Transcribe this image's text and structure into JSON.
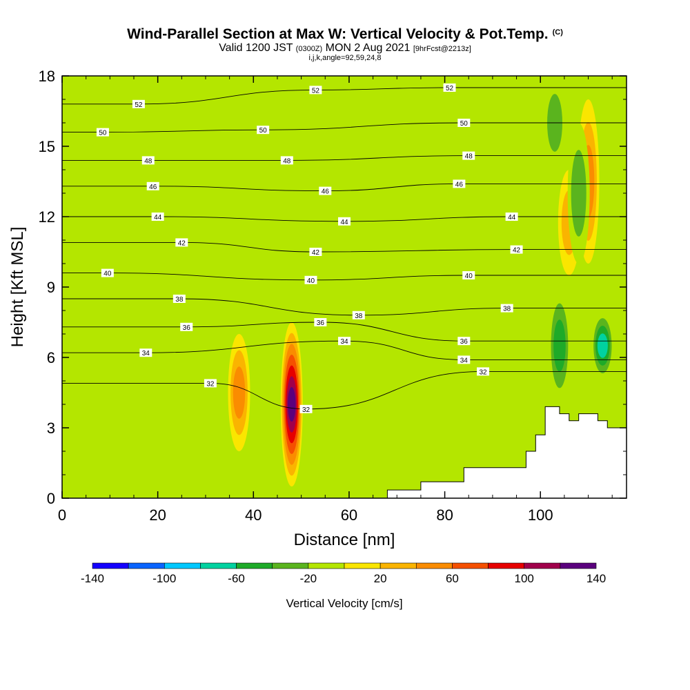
{
  "title": {
    "main": "Wind-Parallel Section at Max W: Vertical Velocity & Pot.Temp.",
    "copyright": "(C)",
    "valid_prefix": "Valid 1200 JST",
    "valid_utc": "(0300Z)",
    "valid_date": "MON 2 Aug 2021",
    "forecast": "[9hrFcst@2213z]",
    "params": "i,j,k,angle=92,59,24,8"
  },
  "chart_data": {
    "type": "heatmap",
    "xlabel": "Distance [nm]",
    "ylabel": "Height [Kft MSL]",
    "xlim": [
      0,
      118
    ],
    "ylim": [
      0,
      18
    ],
    "x_ticks": [
      0,
      20,
      40,
      60,
      80,
      100
    ],
    "y_ticks": [
      0,
      3,
      6,
      9,
      12,
      15,
      18
    ],
    "colorbar": {
      "title": "Vertical Velocity [cm/s]",
      "tick_labels": [
        "-140",
        "-100",
        "-60",
        "-20",
        "20",
        "60",
        "100",
        "140"
      ],
      "levels": [
        -140,
        -120,
        -100,
        -80,
        -60,
        -40,
        -20,
        0,
        20,
        40,
        60,
        80,
        100,
        120,
        140
      ],
      "colors": [
        "#1400ff",
        "#0a64ff",
        "#00c8ff",
        "#00d2a0",
        "#1eaa28",
        "#5ab41e",
        "#b4e600",
        "#fae600",
        "#fab400",
        "#fa8c00",
        "#f55000",
        "#e60000",
        "#a0004b",
        "#5a007d"
      ]
    },
    "background_color": "#b4e600",
    "updraft_cores": [
      {
        "x": 48,
        "y_bottom": 0.5,
        "y_top": 7.5,
        "max_w": 140
      },
      {
        "x": 37,
        "y_bottom": 2.0,
        "y_top": 7.0,
        "max_w": 70
      },
      {
        "x": 110,
        "y_bottom": 10.0,
        "y_top": 17.0,
        "max_w": 60
      },
      {
        "x": 106,
        "y_bottom": 9.5,
        "y_top": 14.0,
        "max_w": 50
      }
    ],
    "downdraft_cores": [
      {
        "x": 104,
        "y_bottom": 4.0,
        "y_top": 9.0,
        "min_w": -60
      },
      {
        "x": 113,
        "y_bottom": 5.0,
        "y_top": 8.0,
        "min_w": -80
      },
      {
        "x": 108,
        "y_bottom": 10.0,
        "y_top": 16.0,
        "min_w": -40
      },
      {
        "x": 103,
        "y_bottom": 14.0,
        "y_top": 18.0,
        "min_w": -40
      }
    ],
    "terrain": [
      [
        68,
        0
      ],
      [
        68,
        0.35
      ],
      [
        75,
        0.35
      ],
      [
        75,
        0.7
      ],
      [
        84,
        0.7
      ],
      [
        84,
        1.3
      ],
      [
        97,
        1.3
      ],
      [
        97,
        2.0
      ],
      [
        99,
        2.0
      ],
      [
        99,
        2.7
      ],
      [
        101,
        2.7
      ],
      [
        101,
        3.9
      ],
      [
        104,
        3.9
      ],
      [
        104,
        3.6
      ],
      [
        106,
        3.6
      ],
      [
        106,
        3.3
      ],
      [
        108,
        3.3
      ],
      [
        108,
        3.6
      ],
      [
        112,
        3.6
      ],
      [
        112,
        3.3
      ],
      [
        114,
        3.3
      ],
      [
        114,
        3.0
      ],
      [
        118,
        3.0
      ],
      [
        118,
        0
      ]
    ],
    "theta_contour_labels": [
      {
        "x": 16,
        "y": 16.8,
        "text": "52"
      },
      {
        "x": 53,
        "y": 17.4,
        "text": "52"
      },
      {
        "x": 81,
        "y": 17.5,
        "text": "52"
      },
      {
        "x": 8.5,
        "y": 15.6,
        "text": "50"
      },
      {
        "x": 42,
        "y": 15.7,
        "text": "50"
      },
      {
        "x": 84,
        "y": 16.0,
        "text": "50"
      },
      {
        "x": 18,
        "y": 14.4,
        "text": "48"
      },
      {
        "x": 47,
        "y": 14.4,
        "text": "48"
      },
      {
        "x": 85,
        "y": 14.6,
        "text": "48"
      },
      {
        "x": 19,
        "y": 13.3,
        "text": "46"
      },
      {
        "x": 55,
        "y": 13.1,
        "text": "46"
      },
      {
        "x": 83,
        "y": 13.4,
        "text": "46"
      },
      {
        "x": 20,
        "y": 12.0,
        "text": "44"
      },
      {
        "x": 59,
        "y": 11.8,
        "text": "44"
      },
      {
        "x": 94,
        "y": 12.0,
        "text": "44"
      },
      {
        "x": 25,
        "y": 10.9,
        "text": "42"
      },
      {
        "x": 53,
        "y": 10.5,
        "text": "42"
      },
      {
        "x": 95,
        "y": 10.6,
        "text": "42"
      },
      {
        "x": 9.5,
        "y": 9.6,
        "text": "40"
      },
      {
        "x": 52,
        "y": 9.3,
        "text": "40"
      },
      {
        "x": 85,
        "y": 9.5,
        "text": "40"
      },
      {
        "x": 24.5,
        "y": 8.5,
        "text": "38"
      },
      {
        "x": 62,
        "y": 7.8,
        "text": "38"
      },
      {
        "x": 93,
        "y": 8.1,
        "text": "38"
      },
      {
        "x": 26,
        "y": 7.3,
        "text": "36"
      },
      {
        "x": 54,
        "y": 7.5,
        "text": "36"
      },
      {
        "x": 84,
        "y": 6.7,
        "text": "36"
      },
      {
        "x": 17.5,
        "y": 6.2,
        "text": "34"
      },
      {
        "x": 59,
        "y": 6.7,
        "text": "34"
      },
      {
        "x": 84,
        "y": 5.9,
        "text": "34"
      },
      {
        "x": 31,
        "y": 4.9,
        "text": "32"
      },
      {
        "x": 51,
        "y": 3.8,
        "text": "32"
      },
      {
        "x": 88,
        "y": 5.4,
        "text": "32"
      }
    ]
  }
}
